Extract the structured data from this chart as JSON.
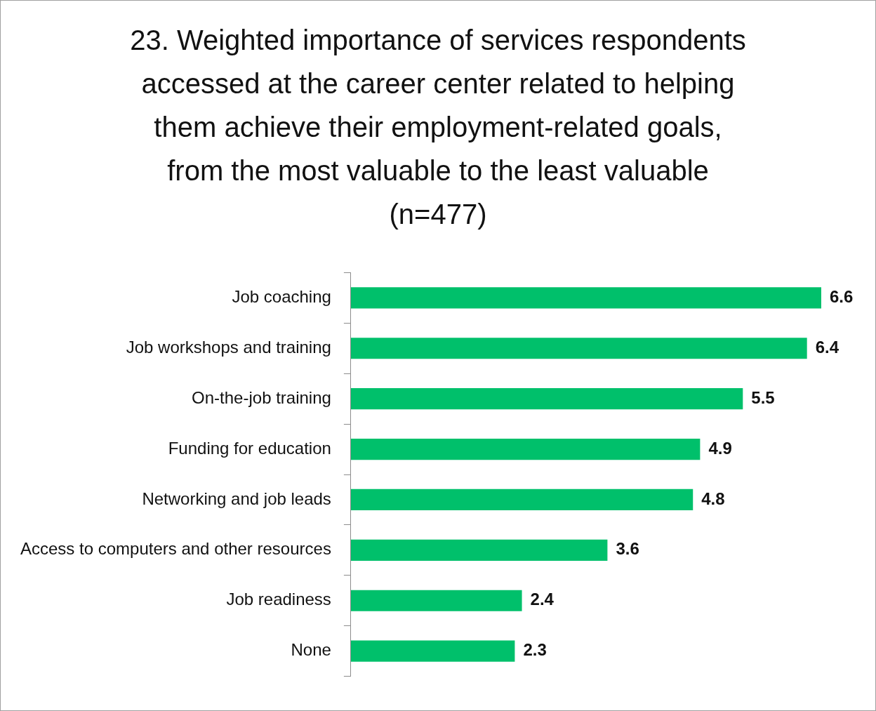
{
  "chart_data": {
    "type": "bar",
    "orientation": "horizontal",
    "title": "23. Weighted importance of services respondents accessed at the career center related to helping them achieve their employment-related goals, from the most valuable to the least valuable (n=477)",
    "categories": [
      "Job coaching",
      "Job workshops and training",
      "On-the-job training",
      "Funding for education",
      "Networking and job leads",
      "Access to computers and other resources",
      "Job readiness",
      "None"
    ],
    "values": [
      6.6,
      6.4,
      5.5,
      4.9,
      4.8,
      3.6,
      2.4,
      2.3
    ],
    "color": "#00c06b",
    "data_labels": true
  }
}
